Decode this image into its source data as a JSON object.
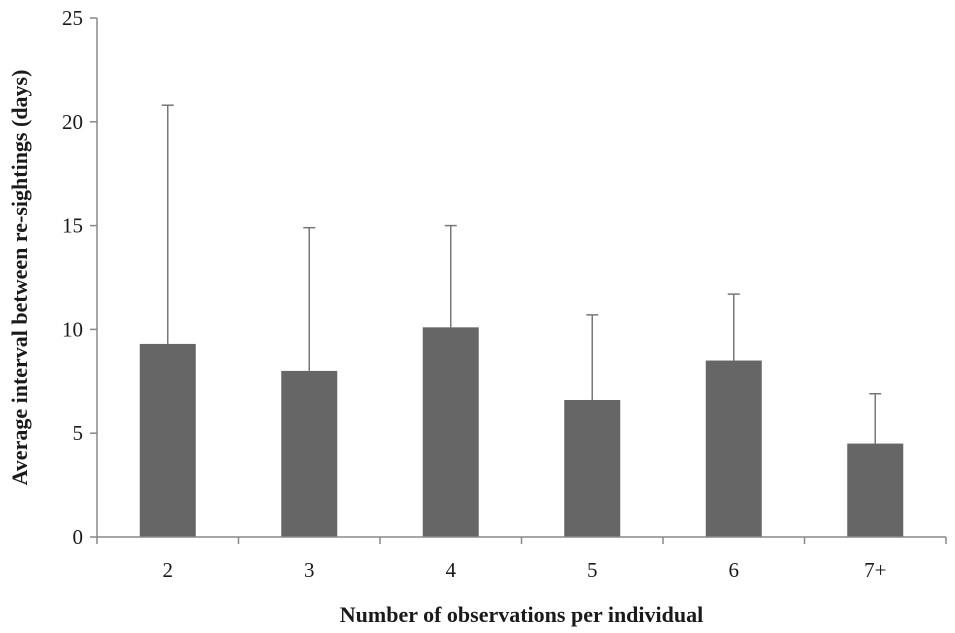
{
  "chart_data": {
    "type": "bar",
    "title": "",
    "xlabel": "Number of observations per individual",
    "ylabel": "Average interval between re-sightings (days)",
    "categories": [
      "2",
      "3",
      "4",
      "5",
      "6",
      "7+"
    ],
    "values": [
      9.3,
      8.0,
      10.1,
      6.6,
      8.5,
      4.5
    ],
    "error_upper": [
      20.8,
      14.9,
      15.0,
      10.7,
      11.7,
      6.9
    ],
    "ylim": [
      0,
      25
    ],
    "yticks": [
      0,
      5,
      10,
      15,
      20,
      25
    ],
    "grid": false,
    "legend": "none",
    "colors": {
      "bar": "#666666",
      "axis": "#888888",
      "error_bar": "#777777"
    }
  }
}
